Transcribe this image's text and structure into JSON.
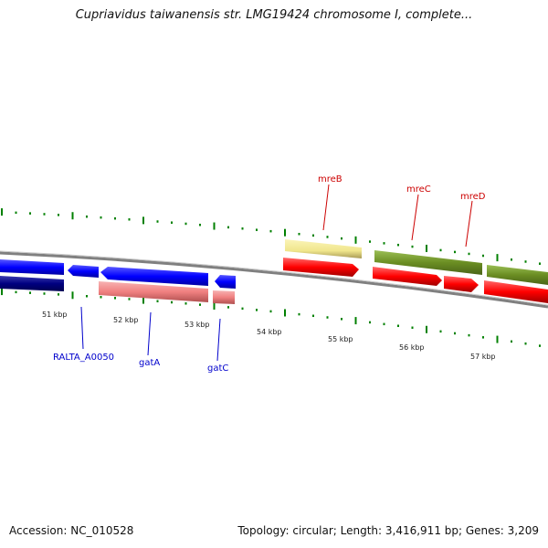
{
  "title": "Cupriavidus taiwanensis str. LMG19424 chromosome I, complete...",
  "accession": "Accession: NC_010528",
  "summary": "Topology: circular; Length: 3,416,911 bp; Genes: 3,209",
  "colors": {
    "strand_forward": "#ff0000",
    "strand_reverse": "#0000ff",
    "forward_label": "#cc0000",
    "reverse_label": "#0000cc",
    "olive": "#6b8e23",
    "khaki": "#f0e68c",
    "salmon": "#f08080",
    "navy": "#000080",
    "backbone": "#808080",
    "tick": "#008000"
  },
  "kbp_ticks": [
    "51 kbp",
    "52 kbp",
    "53 kbp",
    "54 kbp",
    "55 kbp",
    "56 kbp",
    "57 kbp"
  ],
  "gene_labels": {
    "mreB": "mreB",
    "mreC": "mreC",
    "mreD": "mreD",
    "ralta": "RALTA_A0050",
    "gatA": "gatA",
    "gatC": "gatC"
  }
}
